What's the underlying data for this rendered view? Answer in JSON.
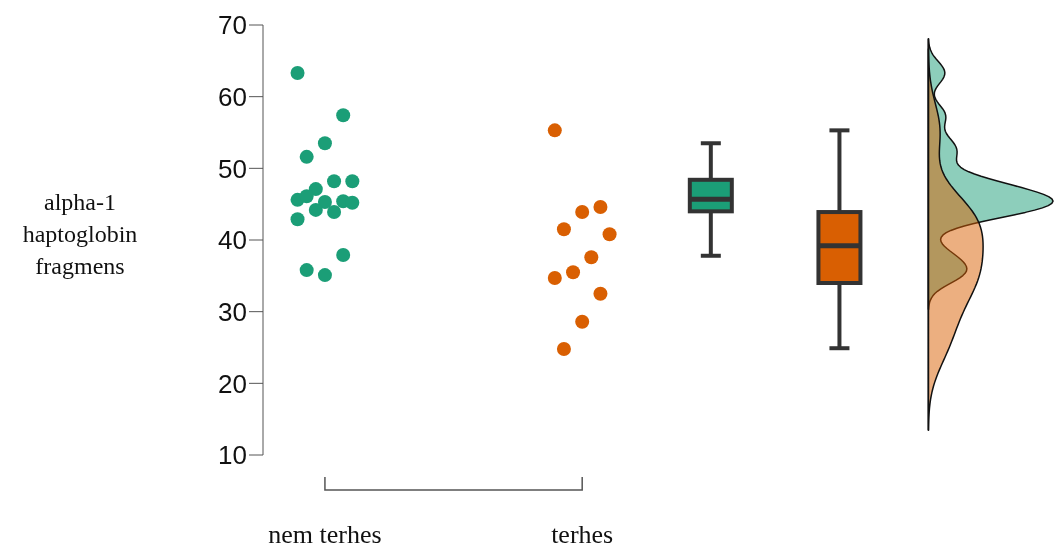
{
  "chart_data": {
    "type": "scatter",
    "ylabel": "alpha-1 haptoglobin fragmens",
    "categories": [
      "nem terhes",
      null,
      "terhes",
      null,
      null
    ],
    "ylim": [
      10,
      70
    ],
    "yticks": [
      10,
      20,
      30,
      40,
      50,
      60,
      70
    ],
    "grid": false,
    "legend": false,
    "marker": "circle",
    "series": [
      {
        "type": "scatter",
        "color": "#1b9e77",
        "x": [
          "nem terhes",
          "nem terhes",
          "nem terhes",
          "nem terhes",
          "nem terhes",
          "nem terhes",
          "nem terhes",
          "nem terhes",
          "nem terhes",
          "nem terhes",
          "nem terhes",
          "nem terhes",
          "nem terhes",
          "nem terhes",
          "nem terhes",
          "nem terhes",
          "nem terhes",
          "nem terhes"
        ],
        "values": [
          63.3,
          57.4,
          53.5,
          51.6,
          48.2,
          48.2,
          47.1,
          45.6,
          45.4,
          45.3,
          46.1,
          45.2,
          43.9,
          44.2,
          42.9,
          37.9,
          35.1,
          35.8
        ]
      },
      {
        "type": "scatter",
        "color": "#d95f02",
        "x": [
          "terhes",
          "terhes",
          "terhes",
          "terhes",
          "terhes",
          "terhes",
          "terhes",
          "terhes",
          "terhes",
          "terhes",
          "terhes"
        ],
        "values": [
          55.3,
          44.6,
          43.9,
          41.5,
          40.8,
          37.6,
          35.5,
          34.7,
          32.5,
          28.6,
          24.8
        ]
      },
      {
        "type": "box",
        "color": "#1b9e77",
        "boxes": [
          null,
          null,
          null,
          {
            "low": 37.8,
            "q1": 44.0,
            "median": 45.7,
            "q3": 48.4,
            "high": 53.5
          },
          null
        ]
      },
      {
        "type": "box",
        "color": "#d95f02",
        "boxes": [
          null,
          null,
          null,
          null,
          {
            "low": 24.9,
            "q1": 34.0,
            "median": 39.2,
            "q3": 43.9,
            "high": 55.3
          }
        ]
      }
    ]
  }
}
